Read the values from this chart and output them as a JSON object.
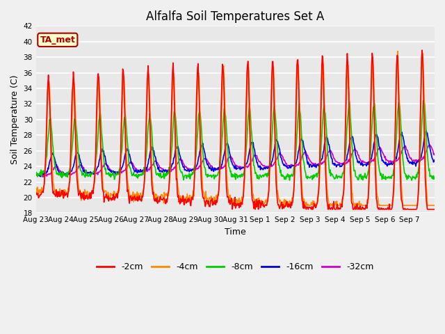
{
  "title": "Alfalfa Soil Temperatures Set A",
  "xlabel": "Time",
  "ylabel": "Soil Temperature (C)",
  "ylim": [
    18,
    42
  ],
  "outer_bg": "#f0f0f0",
  "plot_bg_color": "#e8e8e8",
  "annotation_text": "TA_met",
  "annotation_bg": "#ffffcc",
  "annotation_border": "#aa0000",
  "annotation_text_color": "#aa0000",
  "series_colors": {
    "-2cm": "#ff0000",
    "-4cm": "#ff8800",
    "-8cm": "#00cc00",
    "-16cm": "#0000dd",
    "-32cm": "#cc00cc"
  },
  "series_linewidths": {
    "-2cm": 1.2,
    "-4cm": 1.2,
    "-8cm": 1.2,
    "-16cm": 1.2,
    "-32cm": 1.2
  },
  "tick_dates": [
    "Aug 23",
    "Aug 24",
    "Aug 25",
    "Aug 26",
    "Aug 27",
    "Aug 28",
    "Aug 29",
    "Aug 30",
    "Aug 31",
    "Sep 1",
    "Sep 2",
    "Sep 3",
    "Sep 4",
    "Sep 5",
    "Sep 6",
    "Sep 7"
  ],
  "n_days": 16,
  "points_per_day": 48,
  "title_fontsize": 12,
  "tick_fontsize": 7.5,
  "label_fontsize": 9,
  "legend_fontsize": 9
}
